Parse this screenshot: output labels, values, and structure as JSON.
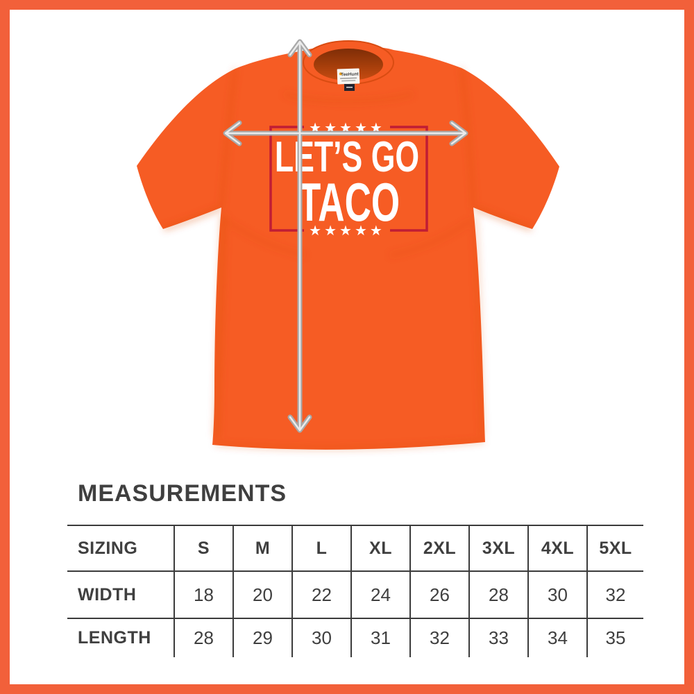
{
  "theme": {
    "frame-orange": "#f2603a",
    "shirt-orange": "#f65c24",
    "shirt-shade": "#d94c12",
    "graphic-red": "#c01d35",
    "graphic-white": "#ffffff",
    "arrow-gray": "#a9a9a9",
    "arrow-core": "#ebebeb",
    "table-line": "#3b3b3b",
    "text-dark": "#3f3f3f"
  },
  "product": {
    "brand_label": "TeeHunt",
    "graphic": {
      "stars_top": "★★★★★",
      "line1": "LET’S GO",
      "line2": "TACO",
      "stars_bottom": "★★★★★"
    },
    "arrows": {
      "vertical_meaning": "length-arrow",
      "horizontal_meaning": "width-arrow"
    }
  },
  "measurements": {
    "title": "MEASUREMENTS",
    "table": {
      "header": [
        "SIZING",
        "S",
        "M",
        "L",
        "XL",
        "2XL",
        "3XL",
        "4XL",
        "5XL"
      ],
      "rows": [
        {
          "label": "WIDTH",
          "values": [
            "18",
            "20",
            "22",
            "24",
            "26",
            "28",
            "30",
            "32"
          ]
        },
        {
          "label": "LENGTH",
          "values": [
            "28",
            "29",
            "30",
            "31",
            "32",
            "33",
            "34",
            "35"
          ]
        }
      ]
    }
  }
}
